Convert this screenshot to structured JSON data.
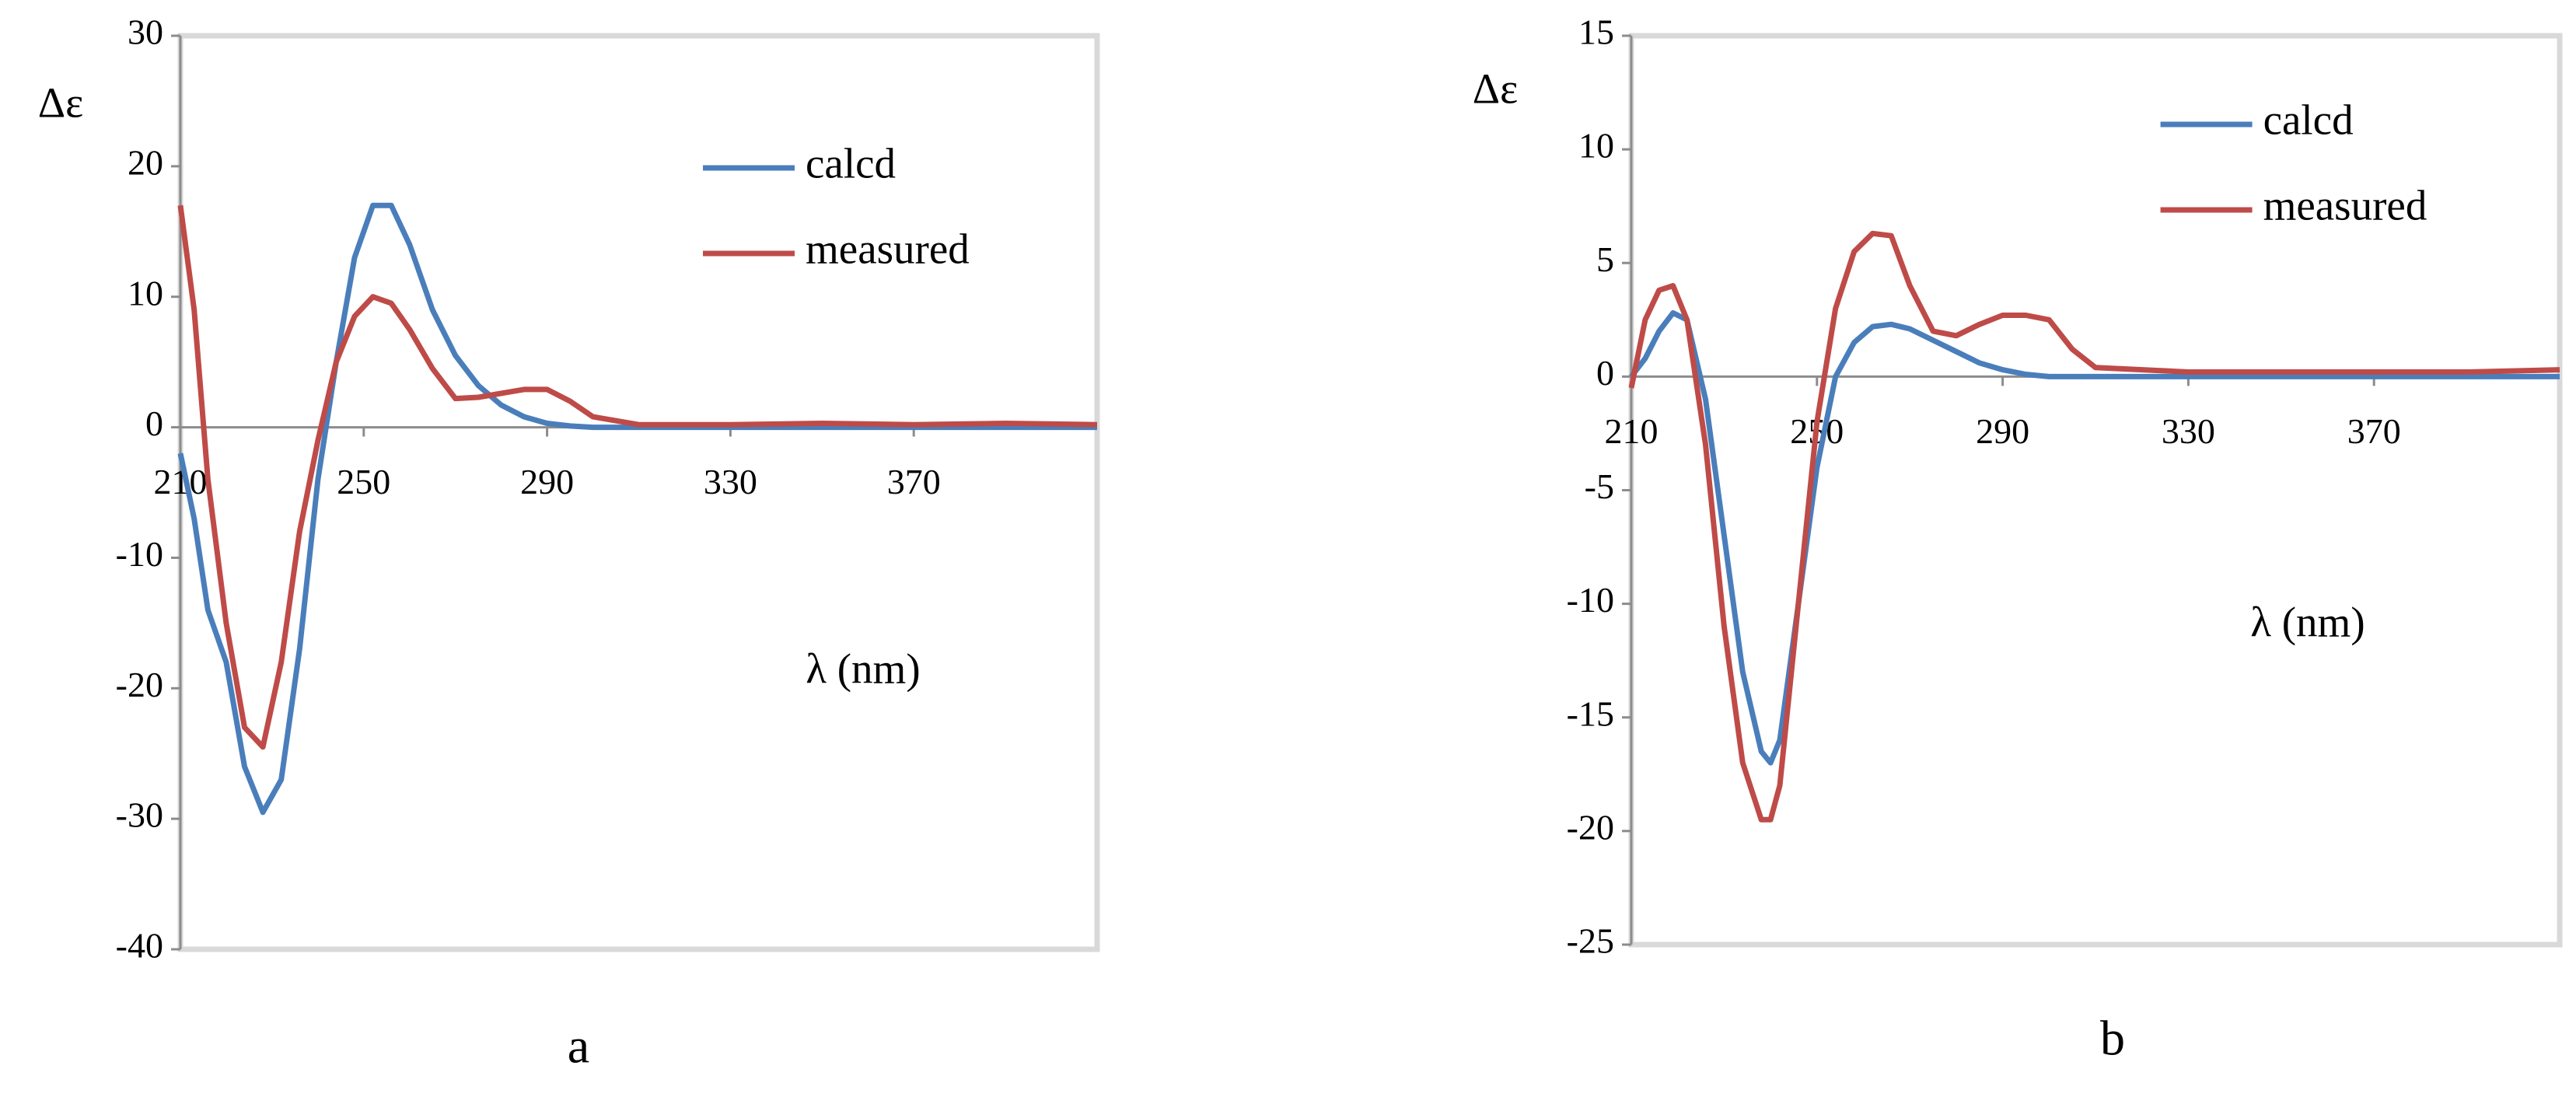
{
  "chart_data": [
    {
      "type": "line",
      "caption": "a",
      "ylabel": "Δε",
      "xlabel": "λ (nm)",
      "legend": "upper right",
      "xlim": [
        210,
        410
      ],
      "xticks": [
        210,
        250,
        290,
        330,
        370
      ],
      "ylim": [
        -40,
        30
      ],
      "yticks": [
        -40,
        -30,
        -20,
        -10,
        0,
        10,
        20,
        30
      ],
      "x": [
        210,
        213,
        216,
        220,
        224,
        228,
        232,
        236,
        240,
        244,
        248,
        252,
        256,
        260,
        265,
        270,
        275,
        280,
        285,
        290,
        295,
        300,
        310,
        330,
        350,
        370,
        390,
        410
      ],
      "series": [
        {
          "name": "calcd",
          "color": "#4a7ebb",
          "values": [
            -2,
            -7,
            -14,
            -18,
            -26,
            -29.5,
            -27,
            -17,
            -4,
            5,
            13,
            17,
            17,
            14,
            9,
            5.5,
            3.2,
            1.7,
            0.8,
            0.3,
            0.1,
            0,
            0,
            0,
            0,
            0,
            0,
            0
          ]
        },
        {
          "name": "measured",
          "color": "#be4b48",
          "values": [
            17,
            9,
            -4,
            -15,
            -23,
            -24.5,
            -18,
            -8,
            -1,
            5,
            8.5,
            10,
            9.5,
            7.5,
            4.5,
            2.2,
            2.3,
            2.6,
            2.9,
            2.9,
            2,
            0.8,
            0.2,
            0.2,
            0.3,
            0.2,
            0.3,
            0.2
          ]
        }
      ]
    },
    {
      "type": "line",
      "caption": "b",
      "ylabel": "Δε",
      "xlabel": "λ (nm)",
      "legend": "upper right",
      "xlim": [
        210,
        410
      ],
      "xticks": [
        210,
        250,
        290,
        330,
        370
      ],
      "ylim": [
        -25,
        15
      ],
      "yticks": [
        -25,
        -20,
        -15,
        -10,
        -5,
        0,
        5,
        10,
        15
      ],
      "x": [
        210,
        213,
        216,
        219,
        222,
        226,
        230,
        234,
        238,
        240,
        242,
        246,
        250,
        254,
        258,
        262,
        266,
        270,
        275,
        280,
        285,
        290,
        295,
        300,
        305,
        310,
        330,
        350,
        370,
        390,
        410
      ],
      "series": [
        {
          "name": "calcd",
          "color": "#4a7ebb",
          "values": [
            0,
            0.8,
            2,
            2.8,
            2.5,
            -1,
            -7,
            -13,
            -16.5,
            -17,
            -16,
            -10,
            -4,
            0,
            1.5,
            2.2,
            2.3,
            2.1,
            1.6,
            1.1,
            0.6,
            0.3,
            0.1,
            0,
            0,
            0,
            0,
            0,
            0,
            0,
            0
          ]
        },
        {
          "name": "measured",
          "color": "#be4b48",
          "values": [
            -0.5,
            2.5,
            3.8,
            4,
            2.5,
            -3,
            -11,
            -17,
            -19.5,
            -19.5,
            -18,
            -10,
            -2,
            3,
            5.5,
            6.3,
            6.2,
            4,
            2,
            1.8,
            2.3,
            2.7,
            2.7,
            2.5,
            1.2,
            0.4,
            0.2,
            0.2,
            0.2,
            0.2,
            0.3
          ]
        }
      ]
    }
  ]
}
